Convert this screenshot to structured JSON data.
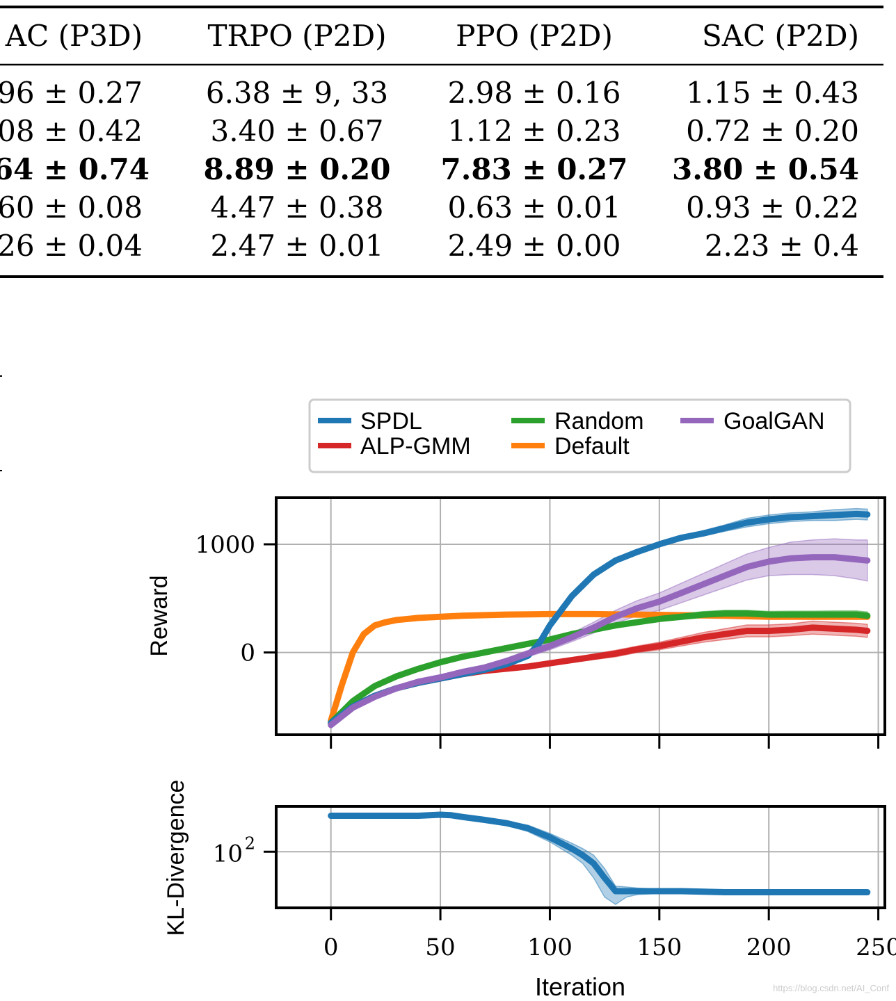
{
  "table": {
    "headers": [
      "AC (P3D)",
      "TRPO (P2D)",
      "PPO (P2D)",
      "SAC (P2D)"
    ],
    "rows": [
      [
        "96 ± 0.27",
        "6.38 ± 9, 33",
        "2.98 ± 0.16",
        "1.15 ± 0.43"
      ],
      [
        "08 ± 0.42",
        "3.40 ± 0.67",
        "1.12 ± 0.23",
        "0.72 ± 0.20"
      ],
      [
        "64 ± 0.74",
        "8.89 ± 0.20",
        "7.83 ± 0.27",
        "3.80 ± 0.54"
      ],
      [
        "60 ± 0.08",
        "4.47 ± 0.38",
        "0.63 ± 0.01",
        "0.93 ± 0.22"
      ],
      [
        "26 ± 0.04",
        "2.47 ± 0.01",
        "2.49 ± 0.00",
        "2.23 ± 0.4"
      ]
    ],
    "bold_row": 2
  },
  "chart_data": [
    {
      "type": "line",
      "ylabel": "Reward",
      "xlim": [
        -25,
        253
      ],
      "ylim": [
        -760,
        1430
      ],
      "yticks": [
        {
          "value": 0,
          "label": "0"
        },
        {
          "value": 1000,
          "label": "1000"
        }
      ],
      "xticks": [
        0,
        50,
        100,
        150,
        200,
        250
      ],
      "grid": true,
      "legend": {
        "placement": "above",
        "columns": 3
      },
      "series": [
        {
          "name": "SPDL",
          "color": "#1f77b4",
          "x": [
            0,
            10,
            20,
            30,
            40,
            50,
            60,
            70,
            80,
            90,
            95,
            100,
            110,
            120,
            130,
            140,
            150,
            160,
            170,
            180,
            190,
            200,
            210,
            220,
            230,
            240,
            245
          ],
          "y": [
            -650,
            -500,
            -400,
            -330,
            -280,
            -240,
            -200,
            -160,
            -110,
            -30,
            80,
            250,
            520,
            720,
            850,
            930,
            1000,
            1060,
            1100,
            1150,
            1200,
            1230,
            1250,
            1260,
            1270,
            1280,
            1275
          ],
          "band": [
            0,
            0,
            10,
            10,
            10,
            10,
            10,
            10,
            15,
            20,
            25,
            30,
            30,
            25,
            20,
            20,
            20,
            20,
            25,
            30,
            40,
            40,
            40,
            40,
            50,
            50,
            50
          ]
        },
        {
          "name": "ALP-GMM",
          "color": "#d62728",
          "x": [
            0,
            10,
            20,
            30,
            40,
            50,
            60,
            70,
            80,
            90,
            100,
            110,
            120,
            130,
            140,
            150,
            160,
            170,
            180,
            190,
            200,
            210,
            220,
            230,
            240,
            245
          ],
          "y": [
            -650,
            -500,
            -400,
            -330,
            -280,
            -240,
            -200,
            -170,
            -150,
            -130,
            -100,
            -70,
            -40,
            -10,
            30,
            60,
            100,
            140,
            170,
            200,
            200,
            210,
            230,
            220,
            210,
            200
          ],
          "band": [
            0,
            0,
            10,
            10,
            10,
            10,
            10,
            10,
            15,
            15,
            20,
            20,
            25,
            30,
            30,
            35,
            40,
            45,
            50,
            55,
            55,
            55,
            60,
            60,
            60,
            60
          ]
        },
        {
          "name": "Random",
          "color": "#2ca02c",
          "x": [
            0,
            10,
            20,
            30,
            40,
            50,
            60,
            70,
            80,
            90,
            100,
            110,
            120,
            130,
            140,
            150,
            160,
            170,
            180,
            190,
            200,
            210,
            220,
            230,
            240,
            245
          ],
          "y": [
            -650,
            -450,
            -310,
            -220,
            -150,
            -90,
            -40,
            0,
            40,
            80,
            120,
            170,
            210,
            250,
            280,
            310,
            330,
            350,
            360,
            360,
            350,
            350,
            350,
            350,
            350,
            340
          ],
          "band": [
            0,
            0,
            5,
            5,
            5,
            5,
            5,
            5,
            5,
            8,
            10,
            12,
            15,
            18,
            20,
            22,
            25,
            28,
            30,
            30,
            30,
            32,
            32,
            35,
            35,
            35
          ]
        },
        {
          "name": "Default",
          "color": "#ff7f0e",
          "x": [
            0,
            5,
            10,
            15,
            20,
            25,
            30,
            40,
            50,
            60,
            80,
            100,
            120,
            140,
            160,
            180,
            200,
            220,
            240,
            245
          ],
          "y": [
            -630,
            -300,
            0,
            170,
            250,
            280,
            300,
            320,
            330,
            340,
            350,
            355,
            355,
            350,
            345,
            340,
            330,
            330,
            330,
            330
          ],
          "band": [
            0,
            5,
            5,
            5,
            5,
            5,
            5,
            5,
            5,
            5,
            5,
            5,
            5,
            5,
            5,
            5,
            5,
            5,
            5,
            5
          ]
        },
        {
          "name": "GoalGAN",
          "color": "#9467bd",
          "x": [
            0,
            10,
            20,
            30,
            40,
            50,
            60,
            70,
            80,
            90,
            100,
            110,
            120,
            130,
            140,
            150,
            160,
            170,
            180,
            190,
            200,
            210,
            220,
            230,
            240,
            245
          ],
          "y": [
            -670,
            -510,
            -410,
            -330,
            -270,
            -230,
            -180,
            -140,
            -80,
            -10,
            60,
            140,
            230,
            330,
            410,
            470,
            550,
            630,
            710,
            790,
            840,
            870,
            880,
            880,
            860,
            850
          ],
          "band": [
            0,
            0,
            10,
            10,
            10,
            10,
            15,
            20,
            25,
            30,
            35,
            40,
            50,
            60,
            70,
            80,
            90,
            100,
            110,
            120,
            130,
            150,
            160,
            170,
            180,
            190
          ]
        }
      ]
    },
    {
      "type": "line",
      "ylabel": "KL-Divergence",
      "xlabel": "Iteration",
      "yscale": "log",
      "ylim": [
        18,
        400
      ],
      "yticks": [
        {
          "value": 100,
          "label_base": "10",
          "label_exp": "2"
        }
      ],
      "xticks": [
        0,
        50,
        100,
        150,
        200,
        250
      ],
      "xlim": [
        -25,
        253
      ],
      "grid": true,
      "series": [
        {
          "color": "#1f77b4",
          "x": [
            0,
            10,
            20,
            30,
            40,
            50,
            55,
            60,
            70,
            80,
            90,
            100,
            110,
            115,
            120,
            125,
            130,
            135,
            140,
            150,
            160,
            180,
            200,
            220,
            240,
            245
          ],
          "y": [
            300,
            300,
            300,
            300,
            300,
            310,
            305,
            290,
            265,
            240,
            205,
            155,
            110,
            90,
            70,
            45,
            30,
            30,
            30,
            30,
            30,
            29,
            29,
            29,
            29,
            29
          ],
          "band_lo": [
            300,
            300,
            300,
            300,
            300,
            310,
            300,
            280,
            250,
            225,
            185,
            135,
            90,
            70,
            45,
            25,
            20,
            25,
            27,
            28,
            28,
            27,
            27,
            28,
            28,
            28
          ],
          "band_hi": [
            300,
            300,
            300,
            300,
            300,
            310,
            310,
            300,
            280,
            255,
            225,
            175,
            130,
            110,
            90,
            60,
            35,
            34,
            33,
            32,
            32,
            31,
            31,
            31,
            31,
            31
          ]
        }
      ]
    }
  ],
  "xticklabels": [
    "0",
    "50",
    "100",
    "150",
    "200",
    "250"
  ],
  "watermark": "https://blog.csdn.net/AI_Conf"
}
